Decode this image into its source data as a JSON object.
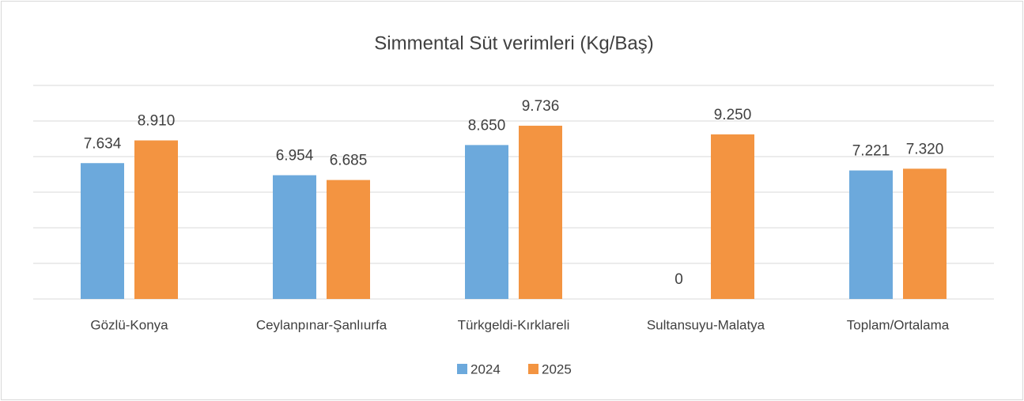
{
  "chart_data": {
    "type": "bar",
    "title": "Simmental Süt verimleri (Kg/Baş)",
    "categories": [
      "Gözlü-Konya",
      "Ceylanpınar-Şanlıurfa",
      "Türkgeldi-Kırklareli",
      "Sultansuyu-Malatya",
      "Toplam/Ortalama"
    ],
    "series": [
      {
        "name": "2024",
        "color": "#6ca9dc",
        "values": [
          7634,
          6954,
          8650,
          0,
          7221
        ],
        "value_labels": [
          "7.634",
          "6.954",
          "8.650",
          "0",
          "7.221"
        ]
      },
      {
        "name": "2025",
        "color": "#f39441",
        "values": [
          8910,
          6685,
          9736,
          9250,
          7320
        ],
        "value_labels": [
          "8.910",
          "6.685",
          "9.736",
          "9.250",
          "7.320"
        ]
      }
    ],
    "ylim": [
      0,
      12000
    ],
    "yticks": [
      0,
      2000,
      4000,
      6000,
      8000,
      10000,
      12000
    ],
    "grid": true,
    "legend": "bottom"
  }
}
